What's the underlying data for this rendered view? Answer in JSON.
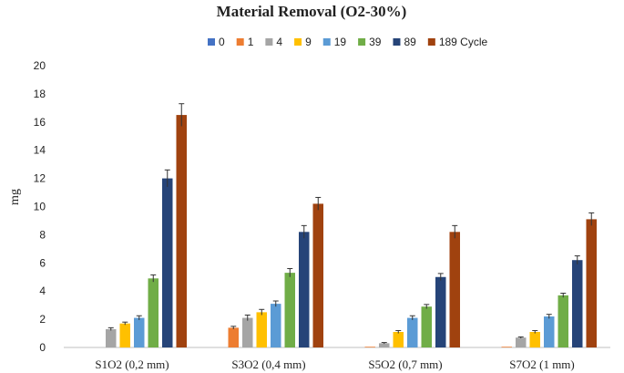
{
  "chart_data": {
    "type": "bar",
    "title": "Material Removal (O2-30%)",
    "ylabel": "mg",
    "xlabel": "",
    "ylim": [
      0,
      20
    ],
    "yticks": [
      0,
      2,
      4,
      6,
      8,
      10,
      12,
      14,
      16,
      18,
      20
    ],
    "grid": false,
    "legend_position": "top",
    "error_bars": true,
    "categories": [
      "S1O2 (0,2 mm)",
      "S3O2 (0,4 mm)",
      "S5O2 (0,7 mm)",
      "S7O2 (1 mm)"
    ],
    "series": [
      {
        "name": "0",
        "color": "#4472C4",
        "values": [
          0,
          0,
          0,
          0
        ],
        "errors": [
          0,
          0,
          0,
          0
        ]
      },
      {
        "name": "1",
        "color": "#ED7D31",
        "values": [
          0,
          1.4,
          0.05,
          0.05
        ],
        "errors": [
          0,
          0.1,
          0,
          0
        ]
      },
      {
        "name": "4",
        "color": "#A5A5A5",
        "values": [
          1.3,
          2.1,
          0.3,
          0.7
        ],
        "errors": [
          0.1,
          0.2,
          0.05,
          0.05
        ]
      },
      {
        "name": "9",
        "color": "#FFC000",
        "values": [
          1.7,
          2.5,
          1.1,
          1.1
        ],
        "errors": [
          0.1,
          0.2,
          0.1,
          0.1
        ]
      },
      {
        "name": "19",
        "color": "#5B9BD5",
        "values": [
          2.1,
          3.1,
          2.1,
          2.2
        ],
        "errors": [
          0.15,
          0.2,
          0.15,
          0.15
        ]
      },
      {
        "name": "39",
        "color": "#70AD47",
        "values": [
          4.9,
          5.3,
          2.9,
          3.7
        ],
        "errors": [
          0.25,
          0.3,
          0.15,
          0.15
        ]
      },
      {
        "name": "89",
        "color": "#264478",
        "values": [
          12.0,
          8.2,
          5.0,
          6.2
        ],
        "errors": [
          0.6,
          0.45,
          0.25,
          0.3
        ]
      },
      {
        "name": "189 Cycle",
        "color": "#A0420F",
        "values": [
          16.5,
          10.2,
          8.2,
          9.1
        ],
        "errors": [
          0.8,
          0.45,
          0.45,
          0.45
        ]
      }
    ]
  }
}
